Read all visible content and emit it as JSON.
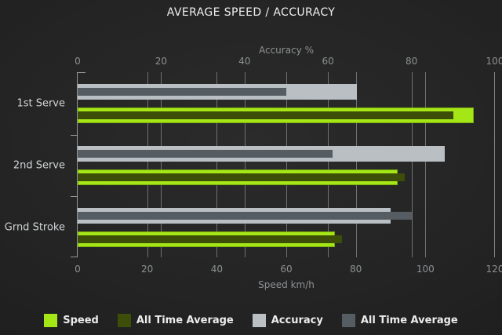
{
  "title": "AVERAGE SPEED / ACCURACY",
  "chart_data": {
    "type": "bar",
    "orientation": "horizontal",
    "categories": [
      "1st Serve",
      "2nd Serve",
      "Grnd Stroke"
    ],
    "series": [
      {
        "name": "Speed",
        "axis": "speed",
        "color": "#a4e616",
        "values": [
          114,
          92,
          74
        ]
      },
      {
        "name": "All Time Average",
        "axis": "speed",
        "color": "#3c4e07",
        "values": [
          108,
          94,
          76
        ]
      },
      {
        "name": "Accuracy",
        "axis": "accuracy",
        "color": "#b9bfc3",
        "values": [
          67,
          88,
          75
        ]
      },
      {
        "name": "All Time Average",
        "axis": "accuracy",
        "color": "#555c62",
        "values": [
          50,
          61,
          80
        ]
      }
    ],
    "top_axis": {
      "label": "Accuracy %",
      "ticks": [
        0,
        20,
        40,
        60,
        80,
        100
      ],
      "range": [
        0,
        100
      ]
    },
    "bottom_axis": {
      "label": "Speed km/h",
      "ticks": [
        0,
        20,
        40,
        60,
        80,
        100,
        120
      ],
      "range": [
        0,
        120
      ]
    },
    "grid": true,
    "legend_position": "bottom",
    "gridline_color": "#8a8e90",
    "background_color": "#222222"
  }
}
